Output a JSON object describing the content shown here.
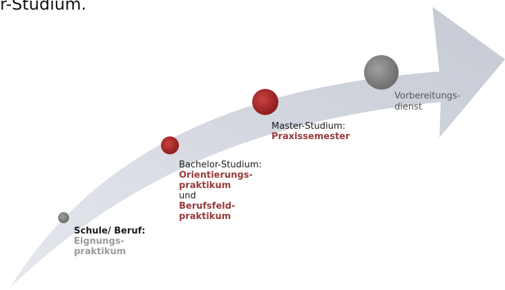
{
  "heading": {
    "text": "r-Studium."
  },
  "stages": [
    {
      "title": "Schule/ Beruf:",
      "detail_lines": [
        "Eignungs-",
        "praktikum"
      ]
    },
    {
      "title": "Bachelor-Studium:",
      "detail_lines_1": [
        "Orientierungs-",
        "praktikum"
      ],
      "connector": "und",
      "detail_lines_2": [
        "Berufsfeld-",
        "praktikum"
      ]
    },
    {
      "title": "Master-Studium:",
      "detail_lines": [
        "Praxissemester"
      ]
    },
    {
      "title_lines": [
        "Vorbereitungs-",
        "dienst"
      ]
    }
  ],
  "colors": {
    "arrow_fill": "#cfd3dc",
    "red_accent": "#983a3a",
    "gray_accent": "#9a9a9a",
    "circle_red": "#a82828",
    "circle_gray": "#8a8a8a"
  }
}
